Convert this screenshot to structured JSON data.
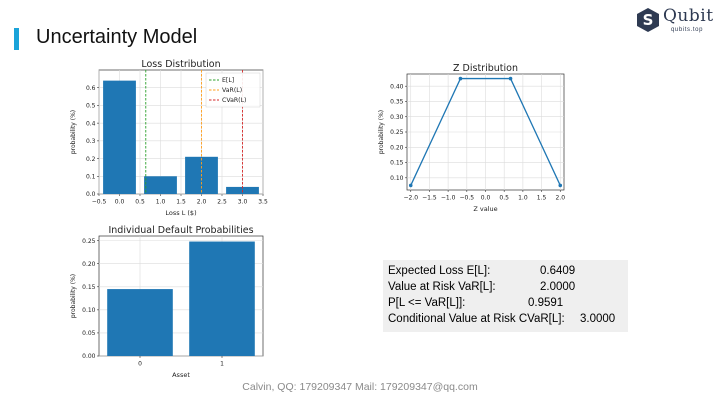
{
  "header": {
    "title": "Uncertainty Model",
    "accent_color": "#1aa3d9"
  },
  "logo": {
    "word": "Qubit",
    "sub": "qubits.top",
    "badge_letter": "S",
    "color": "#2e3a52"
  },
  "footer": {
    "text": "Calvin,  QQ: 179209347  Mail: 179209347@qq.com"
  },
  "stats": [
    {
      "label": "Expected Loss E[L]:",
      "value": "0.6409"
    },
    {
      "label": "Value at Risk VaR[L]:",
      "value": "2.0000"
    },
    {
      "label": "P[L <= VaR[L]]:",
      "value": "0.9591"
    },
    {
      "label": "Conditional Value at Risk CVaR[L]:",
      "value": "3.0000"
    }
  ],
  "chart_data": [
    {
      "type": "bar",
      "title": "Loss Distribution",
      "xlabel": "Loss L ($)",
      "ylabel": "probability (%)",
      "x": [
        0,
        1,
        2,
        3
      ],
      "values": [
        0.64,
        0.1,
        0.21,
        0.04
      ],
      "xlim": [
        -0.5,
        3.5
      ],
      "ylim": [
        0,
        0.7
      ],
      "xticks": [
        "−0.5",
        "0.0",
        "0.5",
        "1.0",
        "1.5",
        "2.0",
        "2.5",
        "3.0",
        "3.5"
      ],
      "yticks": [
        "0.0",
        "0.1",
        "0.2",
        "0.3",
        "0.4",
        "0.5",
        "0.6"
      ],
      "bar_color": "#1f77b4",
      "grid": true,
      "legend_position": "top-right",
      "vlines": [
        {
          "name": "E[L]",
          "x": 0.6409,
          "color": "#2ca02c"
        },
        {
          "name": "VaR(L)",
          "x": 2.0,
          "color": "#ff9f1c"
        },
        {
          "name": "CVaR(L)",
          "x": 3.0,
          "color": "#d62728"
        }
      ]
    },
    {
      "type": "line",
      "title": "Z Distribution",
      "xlabel": "Z value",
      "ylabel": "probability (%)",
      "x": [
        -2.0,
        -0.67,
        0.67,
        2.0
      ],
      "values": [
        0.075,
        0.425,
        0.425,
        0.075
      ],
      "xlim": [
        -2.1,
        2.1
      ],
      "ylim": [
        0.06,
        0.44
      ],
      "xticks": [
        "−2.0",
        "−1.5",
        "−1.0",
        "−0.5",
        "0.0",
        "0.5",
        "1.0",
        "1.5",
        "2.0"
      ],
      "yticks": [
        "0.10",
        "0.15",
        "0.20",
        "0.25",
        "0.30",
        "0.35",
        "0.40"
      ],
      "line_color": "#1f77b4",
      "grid": true
    },
    {
      "type": "bar",
      "title": "Individual Default Probabilities",
      "xlabel": "Asset",
      "ylabel": "probability (%)",
      "categories": [
        "0",
        "1"
      ],
      "values": [
        0.145,
        0.248
      ],
      "ylim": [
        0,
        0.26
      ],
      "yticks": [
        "0.00",
        "0.05",
        "0.10",
        "0.15",
        "0.20",
        "0.25"
      ],
      "bar_color": "#1f77b4",
      "grid": true
    }
  ]
}
